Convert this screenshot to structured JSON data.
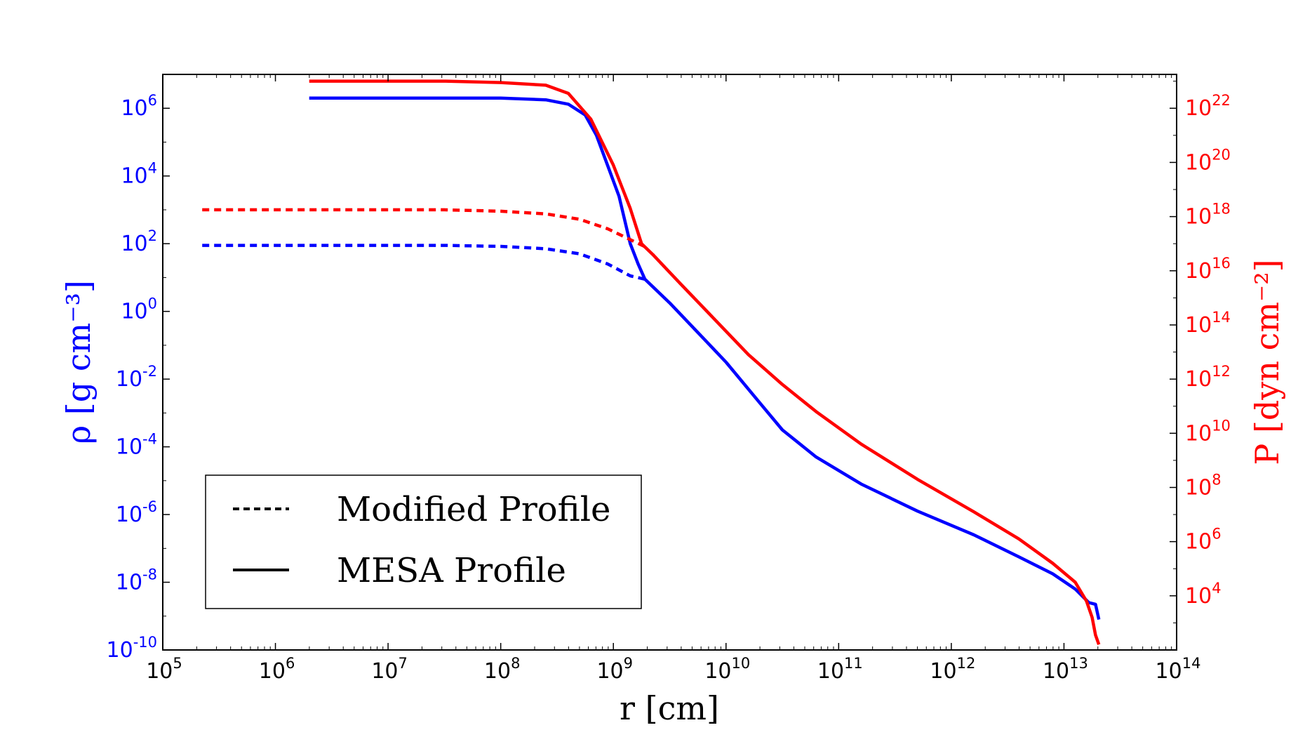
{
  "chart_data": {
    "type": "line",
    "title": "",
    "xlabel": "r [cm]",
    "ylabel_left": "ρ [g cm⁻³]",
    "ylabel_right": "P [dyn cm⁻²]",
    "x_scale": "log",
    "y_left_scale": "log",
    "y_right_scale": "log",
    "xlim_exp": [
      5,
      14
    ],
    "ylim_left_exp": [
      -10,
      7
    ],
    "ylim_right_exp": [
      2,
      23.25
    ],
    "x_ticks": [
      {
        "base": "10",
        "exp": "5",
        "value": 5
      },
      {
        "base": "10",
        "exp": "6",
        "value": 6
      },
      {
        "base": "10",
        "exp": "7",
        "value": 7
      },
      {
        "base": "10",
        "exp": "8",
        "value": 8
      },
      {
        "base": "10",
        "exp": "9",
        "value": 9
      },
      {
        "base": "10",
        "exp": "10",
        "value": 10
      },
      {
        "base": "10",
        "exp": "11",
        "value": 11
      },
      {
        "base": "10",
        "exp": "12",
        "value": 12
      },
      {
        "base": "10",
        "exp": "13",
        "value": 13
      },
      {
        "base": "10",
        "exp": "14",
        "value": 14
      }
    ],
    "y_left_ticks": [
      {
        "base": "10",
        "exp": "-10",
        "value": -10
      },
      {
        "base": "10",
        "exp": "-8",
        "value": -8
      },
      {
        "base": "10",
        "exp": "-6",
        "value": -6
      },
      {
        "base": "10",
        "exp": "-4",
        "value": -4
      },
      {
        "base": "10",
        "exp": "-2",
        "value": -2
      },
      {
        "base": "10",
        "exp": "0",
        "value": 0
      },
      {
        "base": "10",
        "exp": "2",
        "value": 2
      },
      {
        "base": "10",
        "exp": "4",
        "value": 4
      },
      {
        "base": "10",
        "exp": "6",
        "value": 6
      }
    ],
    "y_right_ticks": [
      {
        "base": "10",
        "exp": "4",
        "value": 4
      },
      {
        "base": "10",
        "exp": "6",
        "value": 6
      },
      {
        "base": "10",
        "exp": "8",
        "value": 8
      },
      {
        "base": "10",
        "exp": "10",
        "value": 10
      },
      {
        "base": "10",
        "exp": "12",
        "value": 12
      },
      {
        "base": "10",
        "exp": "14",
        "value": 14
      },
      {
        "base": "10",
        "exp": "16",
        "value": 16
      },
      {
        "base": "10",
        "exp": "18",
        "value": 18
      },
      {
        "base": "10",
        "exp": "20",
        "value": 20
      },
      {
        "base": "10",
        "exp": "22",
        "value": 22
      }
    ],
    "legend": {
      "position": "lower-left",
      "entries": [
        {
          "label": "Modified Profile",
          "style": "dashed"
        },
        {
          "label": "MESA Profile",
          "style": "solid"
        }
      ]
    },
    "colors": {
      "density": "#0000ff",
      "pressure": "#ff0000",
      "axis": "#000000"
    },
    "series": [
      {
        "name": "MESA density",
        "axis": "left",
        "style": "solid",
        "color": "#0000ff",
        "points": [
          [
            6.3,
            6.3
          ],
          [
            7.5,
            6.3
          ],
          [
            8.0,
            6.3
          ],
          [
            8.4,
            6.25
          ],
          [
            8.6,
            6.12
          ],
          [
            8.75,
            5.8
          ],
          [
            8.85,
            5.2
          ],
          [
            8.95,
            4.3
          ],
          [
            9.05,
            3.4
          ],
          [
            9.15,
            2.0
          ],
          [
            9.22,
            1.4
          ],
          [
            9.28,
            0.95
          ],
          [
            9.5,
            0.25
          ],
          [
            9.8,
            -0.8
          ],
          [
            10.0,
            -1.5
          ],
          [
            10.3,
            -2.7
          ],
          [
            10.5,
            -3.5
          ],
          [
            10.8,
            -4.3
          ],
          [
            11.2,
            -5.1
          ],
          [
            11.7,
            -5.9
          ],
          [
            12.2,
            -6.6
          ],
          [
            12.6,
            -7.25
          ],
          [
            12.9,
            -7.75
          ],
          [
            13.1,
            -8.2
          ],
          [
            13.22,
            -8.6
          ],
          [
            13.28,
            -8.65
          ],
          [
            13.31,
            -9.1
          ]
        ]
      },
      {
        "name": "MESA pressure",
        "axis": "right",
        "style": "solid",
        "color": "#ff0000",
        "points": [
          [
            6.3,
            23.0
          ],
          [
            7.5,
            23.0
          ],
          [
            8.0,
            22.95
          ],
          [
            8.4,
            22.85
          ],
          [
            8.6,
            22.55
          ],
          [
            8.8,
            21.6
          ],
          [
            9.0,
            19.9
          ],
          [
            9.15,
            18.3
          ],
          [
            9.25,
            17.0
          ],
          [
            9.35,
            16.6
          ],
          [
            9.6,
            15.5
          ],
          [
            9.9,
            14.2
          ],
          [
            10.2,
            12.9
          ],
          [
            10.5,
            11.8
          ],
          [
            10.8,
            10.8
          ],
          [
            11.2,
            9.6
          ],
          [
            11.7,
            8.3
          ],
          [
            12.2,
            7.1
          ],
          [
            12.6,
            6.1
          ],
          [
            12.9,
            5.2
          ],
          [
            13.1,
            4.5
          ],
          [
            13.2,
            3.8
          ],
          [
            13.25,
            3.2
          ],
          [
            13.28,
            2.55
          ],
          [
            13.31,
            2.2
          ]
        ]
      },
      {
        "name": "Modified density",
        "axis": "left",
        "style": "dashed",
        "color": "#0000ff",
        "points": [
          [
            5.35,
            1.95
          ],
          [
            6.5,
            1.95
          ],
          [
            7.5,
            1.95
          ],
          [
            8.0,
            1.92
          ],
          [
            8.4,
            1.85
          ],
          [
            8.7,
            1.7
          ],
          [
            8.95,
            1.4
          ],
          [
            9.15,
            1.05
          ],
          [
            9.28,
            0.95
          ]
        ]
      },
      {
        "name": "Modified pressure",
        "axis": "right",
        "style": "dashed",
        "color": "#ff0000",
        "points": [
          [
            5.35,
            18.25
          ],
          [
            6.5,
            18.25
          ],
          [
            7.5,
            18.25
          ],
          [
            8.0,
            18.2
          ],
          [
            8.4,
            18.1
          ],
          [
            8.7,
            17.9
          ],
          [
            8.95,
            17.55
          ],
          [
            9.15,
            17.15
          ],
          [
            9.3,
            16.85
          ]
        ]
      }
    ]
  }
}
